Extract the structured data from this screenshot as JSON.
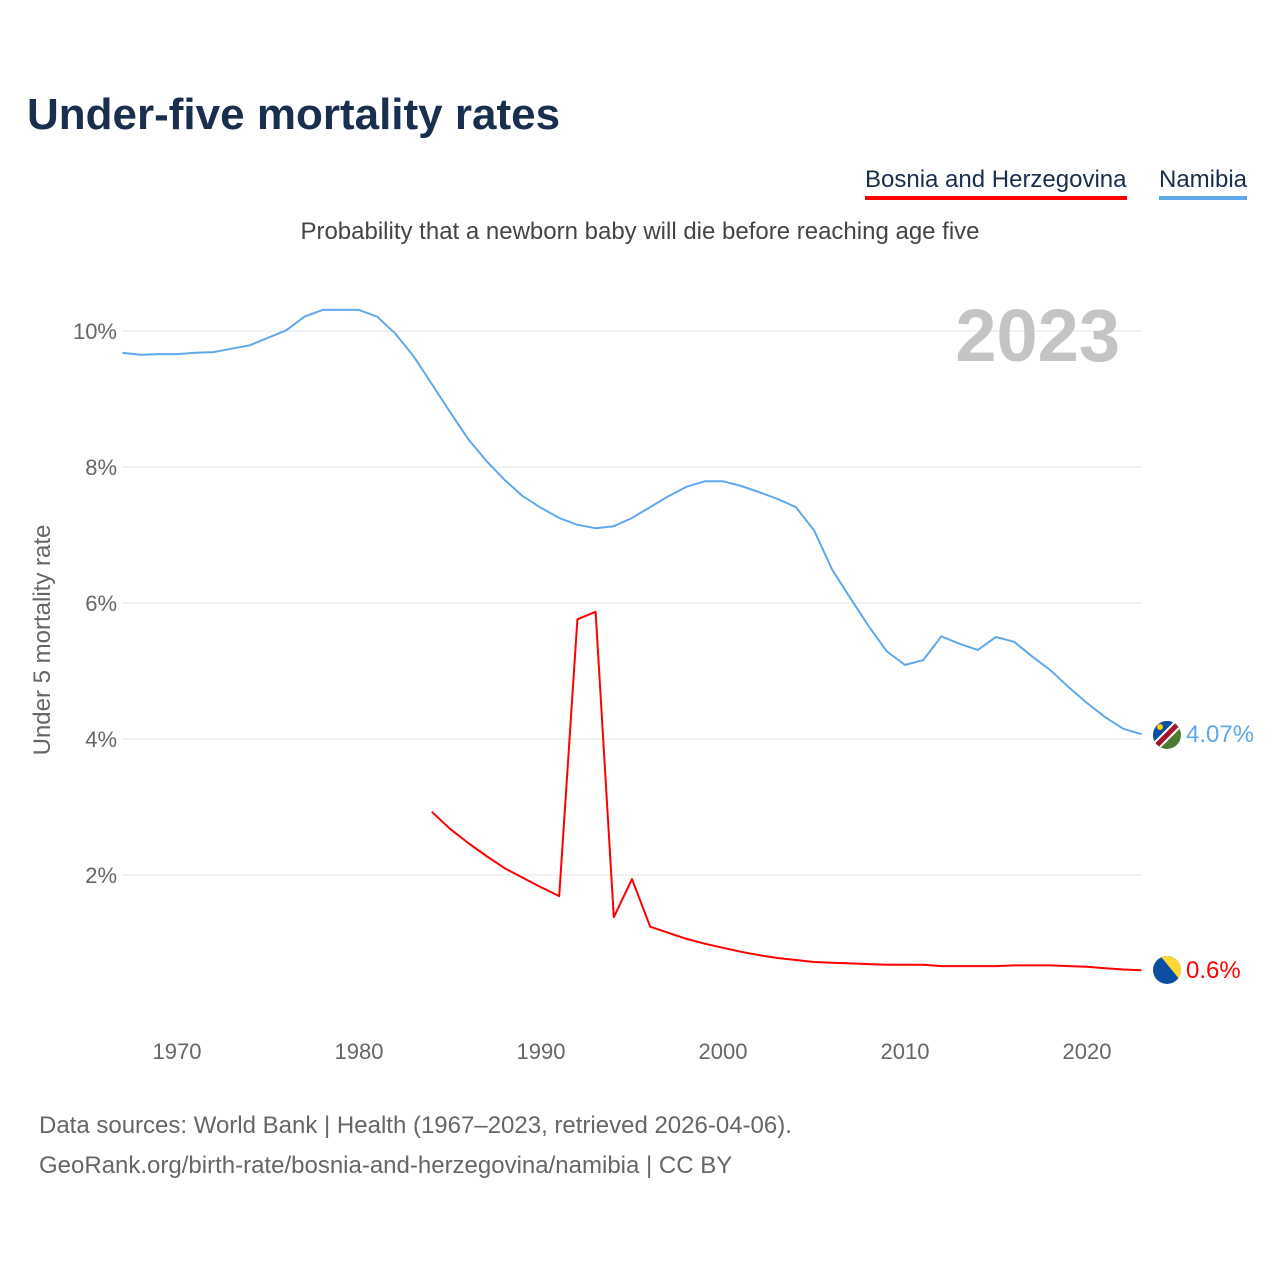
{
  "title": "Under-five mortality rates",
  "subtitle": "Probability that a newborn baby will die before reaching age five",
  "year_label": "2023",
  "source_line1": "Data sources: World Bank | Health (1967–2023, retrieved 2026-04-06).",
  "source_line2": "GeoRank.org/birth-rate/bosnia-and-herzegovina/namibia | CC BY",
  "chart_data": {
    "type": "line",
    "title": "Under-five mortality rates",
    "ylabel": "Under 5 mortality rate",
    "xlabel": "",
    "ylim": [
      0,
      10.5
    ],
    "xlim": [
      1967,
      2023
    ],
    "yticks": [
      2,
      4,
      6,
      8,
      10
    ],
    "ytick_labels": [
      "2%",
      "4%",
      "6%",
      "8%",
      "10%"
    ],
    "xticks": [
      1970,
      1980,
      1990,
      2000,
      2010,
      2020
    ],
    "xtick_labels": [
      "1970",
      "1980",
      "1990",
      "2000",
      "2010",
      "2020"
    ],
    "grid": true,
    "legend_position": "top-right",
    "series": [
      {
        "name": "Bosnia and Herzegovina",
        "color": "#ff0000",
        "end_label": "0.6%",
        "flag": "bosnia-flag-icon",
        "start_year": 1984,
        "values": [
          2.93,
          2.68,
          2.47,
          2.28,
          2.1,
          1.96,
          1.82,
          1.69,
          5.76,
          5.87,
          1.38,
          1.94,
          1.24,
          1.15,
          1.06,
          0.99,
          0.93,
          0.87,
          0.82,
          0.78,
          0.75,
          0.72,
          0.71,
          0.7,
          0.69,
          0.68,
          0.68,
          0.68,
          0.66,
          0.66,
          0.66,
          0.66,
          0.67,
          0.67,
          0.67,
          0.66,
          0.65,
          0.63,
          0.61,
          0.6
        ]
      },
      {
        "name": "Namibia",
        "color": "#5fa8ec",
        "end_label": "4.07%",
        "flag": "namibia-flag-icon",
        "start_year": 1967,
        "values": [
          9.68,
          9.65,
          9.66,
          9.66,
          9.68,
          9.69,
          9.74,
          9.79,
          9.9,
          10.01,
          10.21,
          10.31,
          10.31,
          10.31,
          10.21,
          9.96,
          9.63,
          9.22,
          8.81,
          8.41,
          8.09,
          7.81,
          7.57,
          7.4,
          7.25,
          7.15,
          7.1,
          7.13,
          7.25,
          7.41,
          7.57,
          7.71,
          7.79,
          7.79,
          7.72,
          7.63,
          7.53,
          7.41,
          7.07,
          6.49,
          6.07,
          5.66,
          5.29,
          5.09,
          5.16,
          5.51,
          5.4,
          5.31,
          5.5,
          5.43,
          5.21,
          5.01,
          4.76,
          4.53,
          4.32,
          4.15,
          4.07
        ]
      }
    ]
  }
}
